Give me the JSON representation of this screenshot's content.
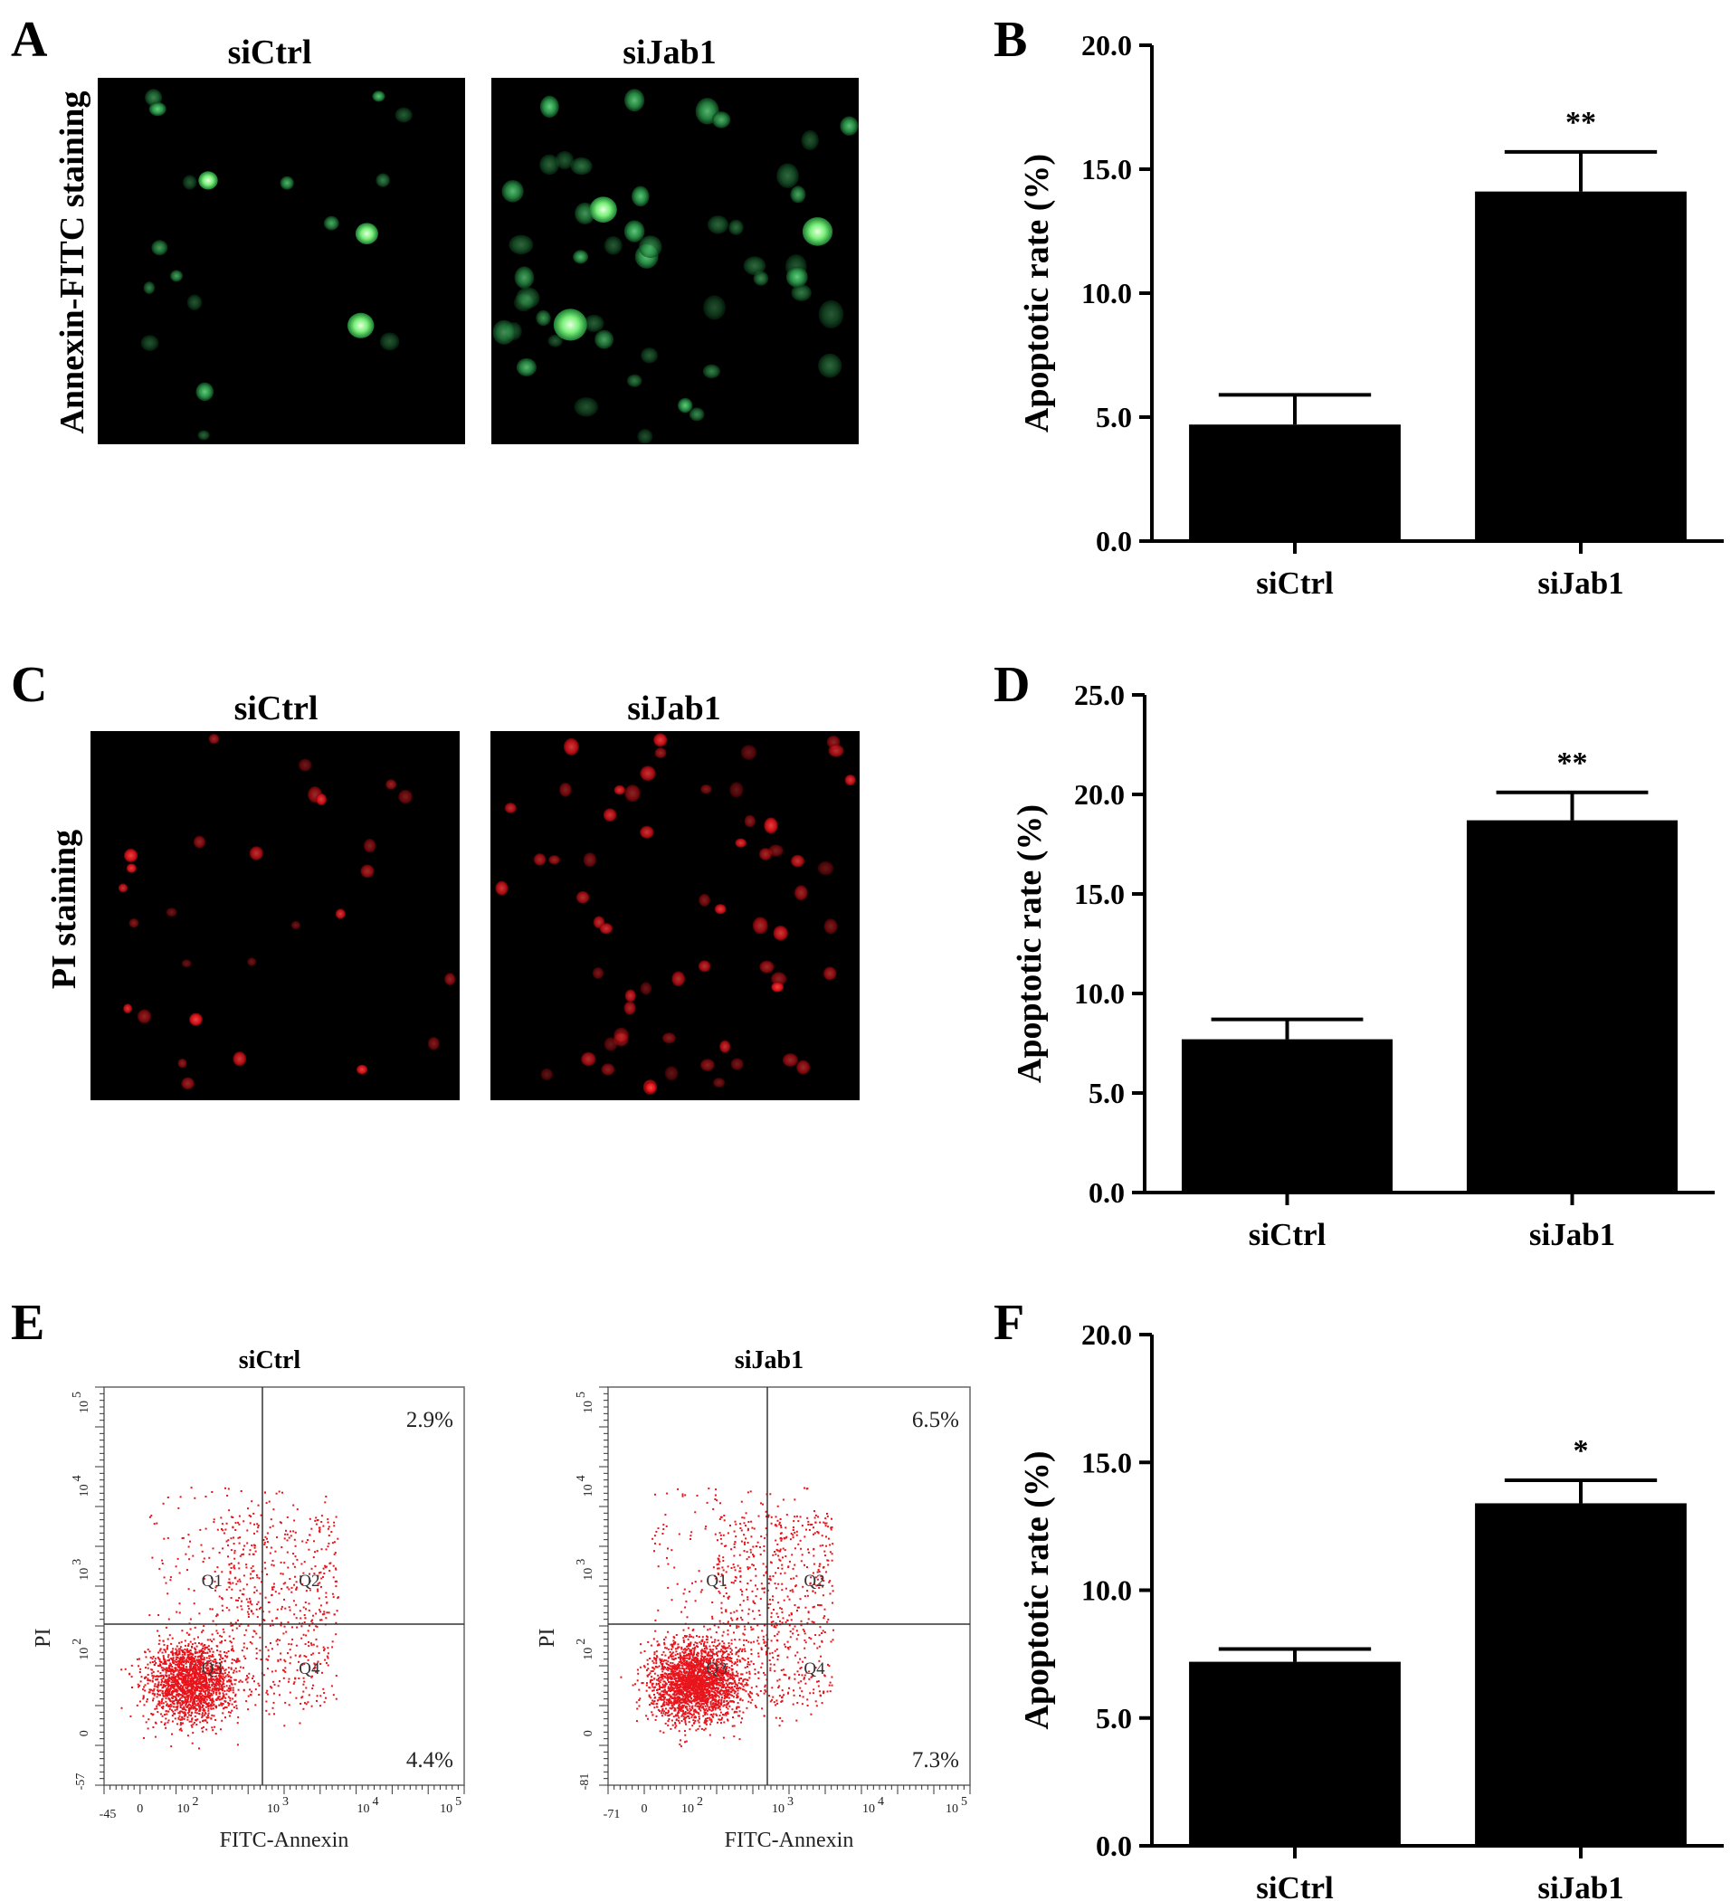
{
  "panel_labels": {
    "A": "A",
    "B": "B",
    "C": "C",
    "D": "D",
    "E": "E",
    "F": "F"
  },
  "micrographs": [
    {
      "row_label": "Annexin-FITC staining",
      "color": "#2fbf5a",
      "images": [
        {
          "title": "siCtrl"
        },
        {
          "title": "siJab1"
        }
      ]
    },
    {
      "row_label": "PI staining",
      "color": "#e8141c",
      "images": [
        {
          "title": "siCtrl"
        },
        {
          "title": "siJab1"
        }
      ]
    }
  ],
  "flow": {
    "point_color": "#e8141c",
    "xlabel": "FITC-Annexin",
    "ylabel": "PI",
    "x_ticks": [
      "0",
      "10",
      "10",
      "10",
      "10"
    ],
    "x_tick_exps": [
      "",
      "2",
      "3",
      "4",
      "5"
    ],
    "y_ticks": [
      "0",
      "10",
      "10",
      "10",
      "10"
    ],
    "y_tick_exps": [
      "",
      "2",
      "3",
      "4",
      "5"
    ],
    "quadrants": [
      "Q1",
      "Q2",
      "Q3",
      "Q4"
    ],
    "plots": [
      {
        "title": "siCtrl",
        "x_min_label": "-45",
        "y_min_label": "-57",
        "upper_right_pct": "2.9%",
        "lower_right_pct": "4.4%"
      },
      {
        "title": "siJab1",
        "x_min_label": "-71",
        "y_min_label": "-81",
        "upper_right_pct": "6.5%",
        "lower_right_pct": "7.3%"
      }
    ]
  },
  "chart_data": [
    {
      "panel": "B",
      "type": "bar",
      "categories": [
        "siCtrl",
        "siJab1"
      ],
      "values": [
        4.7,
        14.1
      ],
      "errors": [
        1.2,
        1.6
      ],
      "significance": [
        "",
        "**"
      ],
      "ylabel": "Apoptotic rate (%)",
      "ylim": [
        0,
        20
      ],
      "yticks": [
        "0.0",
        "5.0",
        "10.0",
        "15.0",
        "20.0"
      ],
      "bar_color": "#000000"
    },
    {
      "panel": "D",
      "type": "bar",
      "categories": [
        "siCtrl",
        "siJab1"
      ],
      "values": [
        7.7,
        18.7
      ],
      "errors": [
        1.0,
        1.4
      ],
      "significance": [
        "",
        "**"
      ],
      "ylabel": "Apoptotic rate (%)",
      "ylim": [
        0,
        25
      ],
      "yticks": [
        "0.0",
        "5.0",
        "10.0",
        "15.0",
        "20.0",
        "25.0"
      ],
      "bar_color": "#000000"
    },
    {
      "panel": "F",
      "type": "bar",
      "categories": [
        "siCtrl",
        "siJab1"
      ],
      "values": [
        7.2,
        13.4
      ],
      "errors": [
        0.5,
        0.9
      ],
      "significance": [
        "",
        "*"
      ],
      "ylabel": "Apoptotic rate (%)",
      "ylim": [
        0,
        20
      ],
      "yticks": [
        "0.0",
        "5.0",
        "10.0",
        "15.0",
        "20.0"
      ],
      "bar_color": "#000000"
    }
  ]
}
